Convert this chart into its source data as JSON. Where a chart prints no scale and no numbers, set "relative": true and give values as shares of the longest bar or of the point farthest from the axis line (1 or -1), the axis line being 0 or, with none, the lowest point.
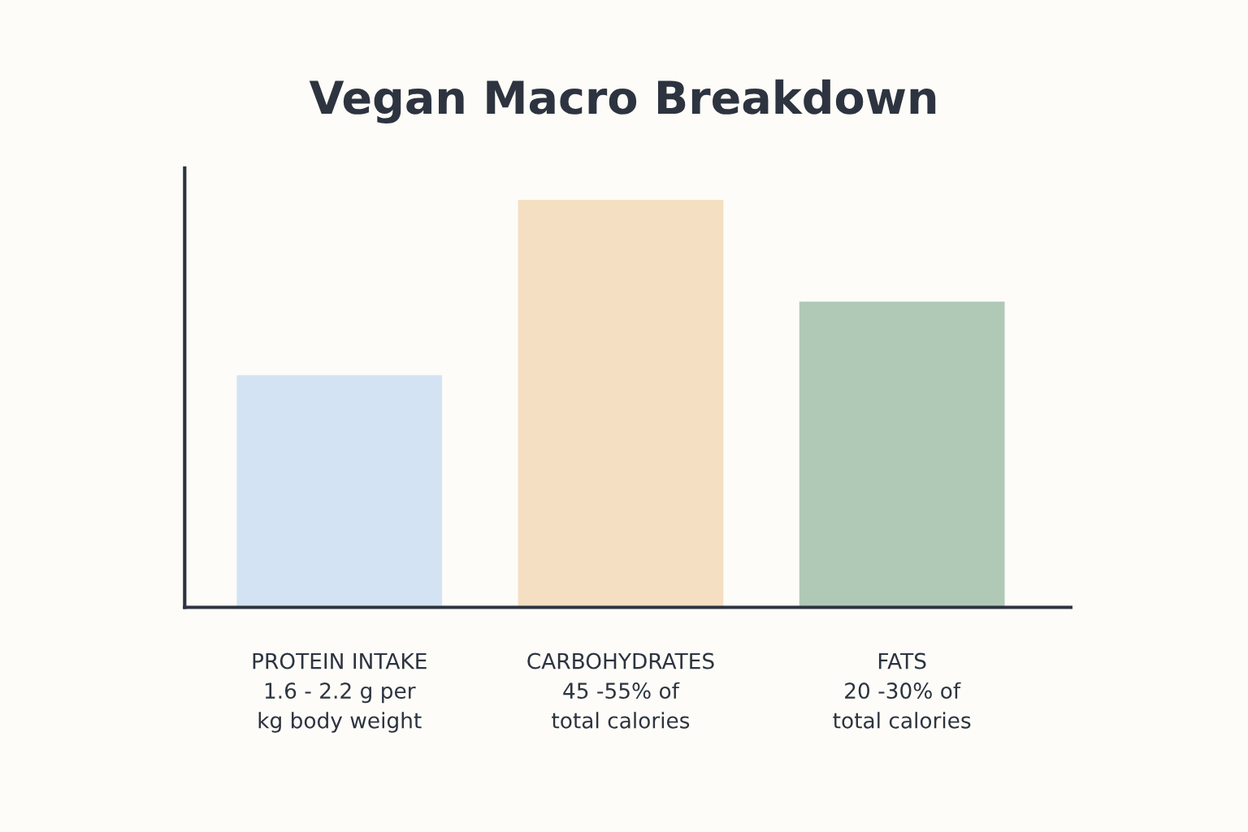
{
  "chart_data": {
    "type": "bar",
    "title": "Vegan Macro Breakdown",
    "categories": [
      "PROTEIN INTAKE\n1.6 - 2.2 g per\nkg body weight",
      "CARBOHYDRATES\n45 -55% of\ntotal calories",
      "FATS\n20 -30% of\ntotal calories"
    ],
    "values": [
      0.57,
      1,
      0.75
    ],
    "colors": [
      "#d4e3f3",
      "#f5dfc2",
      "#b0c9b7"
    ],
    "relative": true,
    "grid": false,
    "legend": false
  }
}
